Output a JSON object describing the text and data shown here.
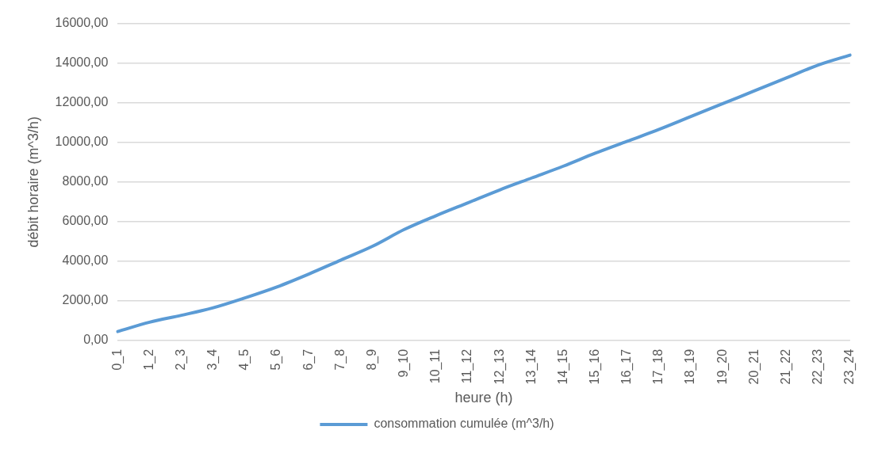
{
  "chart_data": {
    "type": "line",
    "xlabel": "heure (h)",
    "ylabel": "débit horaire (m^3/h)",
    "categories": [
      "0_1",
      "1_2",
      "2_3",
      "3_4",
      "4_5",
      "5_6",
      "6_7",
      "7_8",
      "8_9",
      "9_10",
      "10_11",
      "11_12",
      "12_13",
      "13_14",
      "14_15",
      "15_16",
      "16_17",
      "17_18",
      "18_19",
      "19_20",
      "20_21",
      "21_22",
      "22_23",
      "23_24"
    ],
    "series": [
      {
        "name": "consommation cumulée (m^3/h)",
        "color": "#5b9bd5",
        "values": [
          450,
          920,
          1270,
          1650,
          2150,
          2700,
          3350,
          4050,
          4750,
          5600,
          6300,
          6950,
          7600,
          8200,
          8800,
          9450,
          10050,
          10650,
          11300,
          11950,
          12600,
          13250,
          13900,
          14400
        ]
      }
    ],
    "ylim": [
      0,
      16000
    ],
    "yticks": [
      {
        "value": 0,
        "label": "0,00"
      },
      {
        "value": 2000,
        "label": "2000,00"
      },
      {
        "value": 4000,
        "label": "4000,00"
      },
      {
        "value": 6000,
        "label": "6000,00"
      },
      {
        "value": 8000,
        "label": "8000,00"
      },
      {
        "value": 10000,
        "label": "10000,00"
      },
      {
        "value": 12000,
        "label": "12000,00"
      },
      {
        "value": 14000,
        "label": "14000,00"
      },
      {
        "value": 16000,
        "label": "16000,00"
      }
    ],
    "grid": "y",
    "legend": "bottom",
    "marker": "none",
    "line_style": "solid"
  }
}
